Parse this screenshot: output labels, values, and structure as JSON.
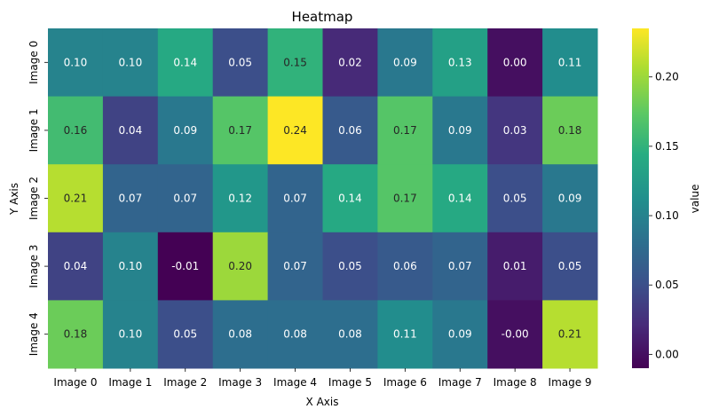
{
  "chart_data": {
    "type": "heatmap",
    "title": "Heatmap",
    "xlabel": "X Axis",
    "ylabel": "Y Axis",
    "x_categories": [
      "Image 0",
      "Image 1",
      "Image 2",
      "Image 3",
      "Image 4",
      "Image 5",
      "Image 6",
      "Image 7",
      "Image 8",
      "Image 9"
    ],
    "y_categories": [
      "Image 0",
      "Image 1",
      "Image 2",
      "Image 3",
      "Image 4"
    ],
    "values": [
      [
        0.1,
        0.1,
        0.14,
        0.05,
        0.15,
        0.02,
        0.09,
        0.13,
        0.0,
        0.11
      ],
      [
        0.16,
        0.04,
        0.09,
        0.17,
        0.24,
        0.06,
        0.17,
        0.09,
        0.03,
        0.18
      ],
      [
        0.21,
        0.07,
        0.07,
        0.12,
        0.07,
        0.14,
        0.17,
        0.14,
        0.05,
        0.09
      ],
      [
        0.04,
        0.1,
        -0.01,
        0.2,
        0.07,
        0.05,
        0.06,
        0.07,
        0.01,
        0.05
      ],
      [
        0.18,
        0.1,
        0.05,
        0.08,
        0.08,
        0.08,
        0.11,
        0.09,
        -0.0,
        0.21
      ]
    ],
    "cell_labels": [
      [
        "0.10",
        "0.10",
        "0.14",
        "0.05",
        "0.15",
        "0.02",
        "0.09",
        "0.13",
        "0.00",
        "0.11"
      ],
      [
        "0.16",
        "0.04",
        "0.09",
        "0.17",
        "0.24",
        "0.06",
        "0.17",
        "0.09",
        "0.03",
        "0.18"
      ],
      [
        "0.21",
        "0.07",
        "0.07",
        "0.12",
        "0.07",
        "0.14",
        "0.17",
        "0.14",
        "0.05",
        "0.09"
      ],
      [
        "0.04",
        "0.10",
        "-0.01",
        "0.20",
        "0.07",
        "0.05",
        "0.06",
        "0.07",
        "0.01",
        "0.05"
      ],
      [
        "0.18",
        "0.10",
        "0.05",
        "0.08",
        "0.08",
        "0.08",
        "0.11",
        "0.09",
        "-0.00",
        "0.21"
      ]
    ],
    "colormap": "viridis",
    "vmin": -0.01,
    "vmax": 0.235,
    "colorbar": {
      "label": "value",
      "ticks": [
        0.0,
        0.05,
        0.1,
        0.15,
        0.2
      ],
      "tick_labels": [
        "0.00",
        "0.05",
        "0.10",
        "0.15",
        "0.20"
      ]
    }
  }
}
